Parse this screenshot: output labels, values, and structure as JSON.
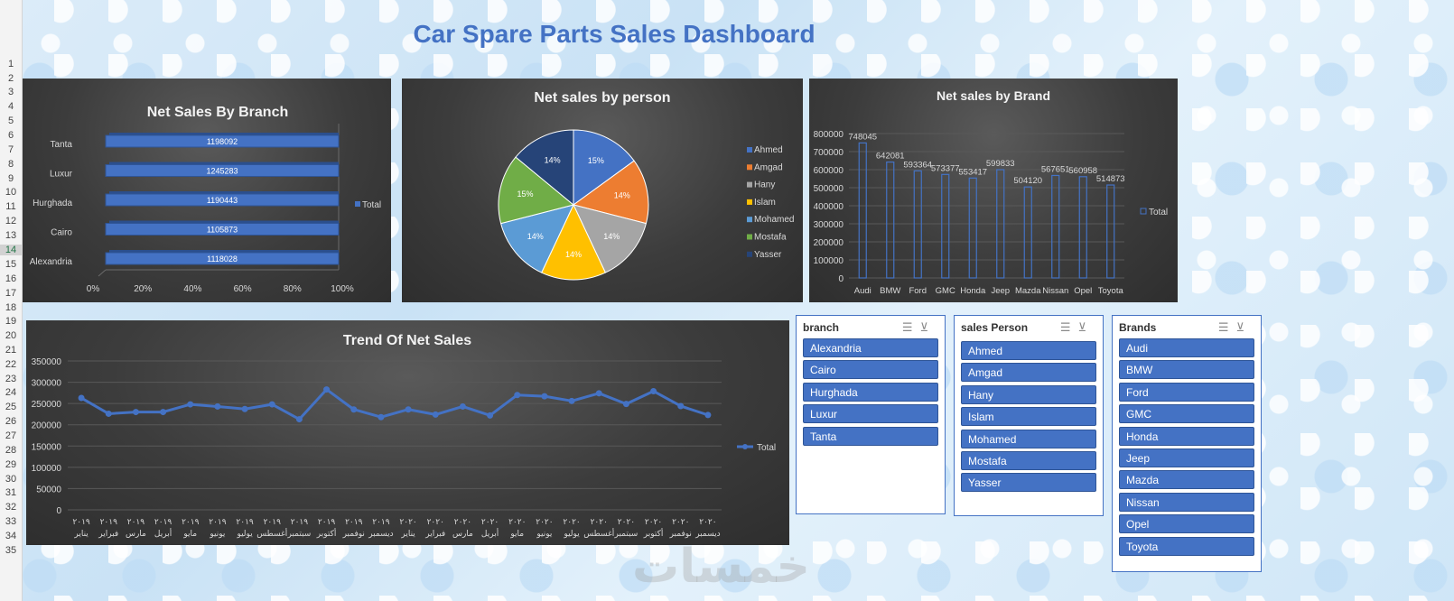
{
  "dashboard_title": "Car Spare Parts Sales Dashboard",
  "row_numbers": [
    "1",
    "2",
    "3",
    "4",
    "5",
    "6",
    "7",
    "8",
    "9",
    "10",
    "11",
    "12",
    "13",
    "14",
    "15",
    "16",
    "17",
    "18",
    "19",
    "20",
    "21",
    "22",
    "23",
    "24",
    "25",
    "26",
    "27",
    "28",
    "29",
    "30",
    "31",
    "32",
    "33",
    "34",
    "35"
  ],
  "selected_row": "14",
  "colors": {
    "accent": "#4472c4",
    "panel_dark": "#3c3c3c",
    "slicer_button": "#4472c4"
  },
  "chart_data": [
    {
      "id": "branch",
      "type": "bar",
      "orientation": "horizontal",
      "title": "Net Sales By Branch",
      "categories": [
        "Tanta",
        "Luxur",
        "Hurghada",
        "Cairo",
        "Alexandria"
      ],
      "series": [
        {
          "name": "Total",
          "values": [
            1198092,
            1245283,
            1190443,
            1105873,
            1118028
          ]
        }
      ],
      "x_ticks": [
        "0%",
        "20%",
        "40%",
        "60%",
        "80%",
        "100%"
      ],
      "legend": "right"
    },
    {
      "id": "person",
      "type": "pie",
      "title": "Net sales by person",
      "categories": [
        "Ahmed",
        "Amgad",
        "Hany",
        "Islam",
        "Mohamed",
        "Mostafa",
        "Yasser"
      ],
      "values": [
        15,
        14,
        14,
        14,
        14,
        15,
        14
      ],
      "labels": [
        "15%",
        "14%",
        "14%",
        "14%",
        "14%",
        "15%",
        "14%"
      ],
      "colors": [
        "#4472c4",
        "#ed7d31",
        "#a5a5a5",
        "#ffc000",
        "#5b9bd5",
        "#70ad47",
        "#264478"
      ],
      "legend": "right"
    },
    {
      "id": "brand",
      "type": "bar",
      "title": "Net sales by Brand",
      "categories": [
        "Audi",
        "BMW",
        "Ford",
        "GMC",
        "Honda",
        "Jeep",
        "Mazda",
        "Nissan",
        "Opel",
        "Toyota"
      ],
      "series": [
        {
          "name": "Total",
          "values": [
            748045,
            642081,
            593364,
            573377,
            553417,
            599833,
            504120,
            567651,
            560958,
            514873
          ]
        }
      ],
      "ylim": [
        0,
        800000
      ],
      "y_ticks": [
        "0",
        "100000",
        "200000",
        "300000",
        "400000",
        "500000",
        "600000",
        "700000",
        "800000"
      ],
      "legend": "right"
    },
    {
      "id": "trend",
      "type": "line",
      "title": "Trend Of Net Sales",
      "categories": [
        {
          "month": "يناير",
          "year": "٢٠١٩"
        },
        {
          "month": "فبراير",
          "year": "٢٠١٩"
        },
        {
          "month": "مارس",
          "year": "٢٠١٩"
        },
        {
          "month": "أبريل",
          "year": "٢٠١٩"
        },
        {
          "month": "مايو",
          "year": "٢٠١٩"
        },
        {
          "month": "يونيو",
          "year": "٢٠١٩"
        },
        {
          "month": "يوليو",
          "year": "٢٠١٩"
        },
        {
          "month": "أغسطس",
          "year": "٢٠١٩"
        },
        {
          "month": "سبتمبر",
          "year": "٢٠١٩"
        },
        {
          "month": "أكتوبر",
          "year": "٢٠١٩"
        },
        {
          "month": "نوفمبر",
          "year": "٢٠١٩"
        },
        {
          "month": "ديسمبر",
          "year": "٢٠١٩"
        },
        {
          "month": "يناير",
          "year": "٢٠٢٠"
        },
        {
          "month": "فبراير",
          "year": "٢٠٢٠"
        },
        {
          "month": "مارس",
          "year": "٢٠٢٠"
        },
        {
          "month": "أبريل",
          "year": "٢٠٢٠"
        },
        {
          "month": "مايو",
          "year": "٢٠٢٠"
        },
        {
          "month": "يونيو",
          "year": "٢٠٢٠"
        },
        {
          "month": "يوليو",
          "year": "٢٠٢٠"
        },
        {
          "month": "أغسطس",
          "year": "٢٠٢٠"
        },
        {
          "month": "سبتمبر",
          "year": "٢٠٢٠"
        },
        {
          "month": "أكتوبر",
          "year": "٢٠٢٠"
        },
        {
          "month": "نوفمبر",
          "year": "٢٠٢٠"
        },
        {
          "month": "ديسمبر",
          "year": "٢٠٢٠"
        }
      ],
      "series": [
        {
          "name": "Total",
          "values": [
            263000,
            226000,
            230000,
            230000,
            248000,
            243000,
            237000,
            248000,
            213000,
            283000,
            236000,
            218000,
            236000,
            224000,
            243000,
            222000,
            270000,
            267000,
            256000,
            274000,
            249000,
            279000,
            244000,
            223000
          ]
        }
      ],
      "ylim": [
        0,
        350000
      ],
      "y_ticks": [
        "0",
        "50000",
        "100000",
        "150000",
        "200000",
        "250000",
        "300000",
        "350000"
      ],
      "legend": "right"
    }
  ],
  "slicers": [
    {
      "id": "branch",
      "header": "branch",
      "items": [
        "Alexandria",
        "Cairo",
        "Hurghada",
        "Luxur",
        "Tanta"
      ]
    },
    {
      "id": "person",
      "header": "sales Person",
      "items": [
        "Ahmed",
        "Amgad",
        "Hany",
        "Islam",
        "Mohamed",
        "Mostafa",
        "Yasser"
      ]
    },
    {
      "id": "brand",
      "header": "Brands",
      "items": [
        "Audi",
        "BMW",
        "Ford",
        "GMC",
        "Honda",
        "Jeep",
        "Mazda",
        "Nissan",
        "Opel",
        "Toyota"
      ]
    }
  ],
  "slicer_icons": [
    "multi-select-icon",
    "clear-filter-icon"
  ]
}
